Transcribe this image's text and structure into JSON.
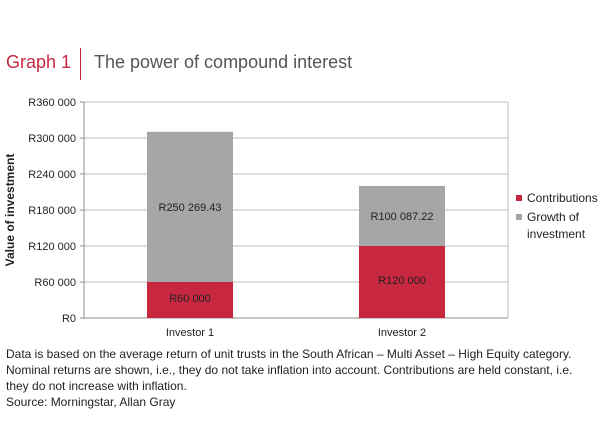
{
  "header": {
    "graph_label": "Graph 1",
    "title": "The power of compound interest"
  },
  "chart_data": {
    "type": "bar",
    "stacked": true,
    "categories": [
      "Investor 1",
      "Investor 2"
    ],
    "series": [
      {
        "name": "Contributions",
        "values": [
          60000,
          120000
        ],
        "labels": [
          "R60 000",
          "R120 000"
        ],
        "color": "#c8283f"
      },
      {
        "name": "Growth of investment",
        "values": [
          250269.43,
          100087.22
        ],
        "labels": [
          "R250 269.43",
          "R100 087.22"
        ],
        "color": "#a6a6a6"
      }
    ],
    "ylabel": "Value of investment",
    "ylim": [
      0,
      360000
    ],
    "yticks": [
      0,
      60000,
      120000,
      180000,
      240000,
      300000,
      360000
    ],
    "ytick_labels": [
      "R0",
      "R60 000",
      "R120 000",
      "R180 000",
      "R240 000",
      "R300 000",
      "R360 000"
    ],
    "grid": true,
    "legend_position": "right"
  },
  "legend": {
    "contributions": "Contributions",
    "growth": "Growth of investment"
  },
  "footnote": {
    "text": "Data is based on the average return of unit trusts in the South African –  Multi Asset – High Equity category. Nominal returns are shown, i.e., they do not take inflation into account. Contributions are held constant, i.e. they do not increase with inflation.",
    "source": "Source: Morningstar, Allan Gray"
  }
}
